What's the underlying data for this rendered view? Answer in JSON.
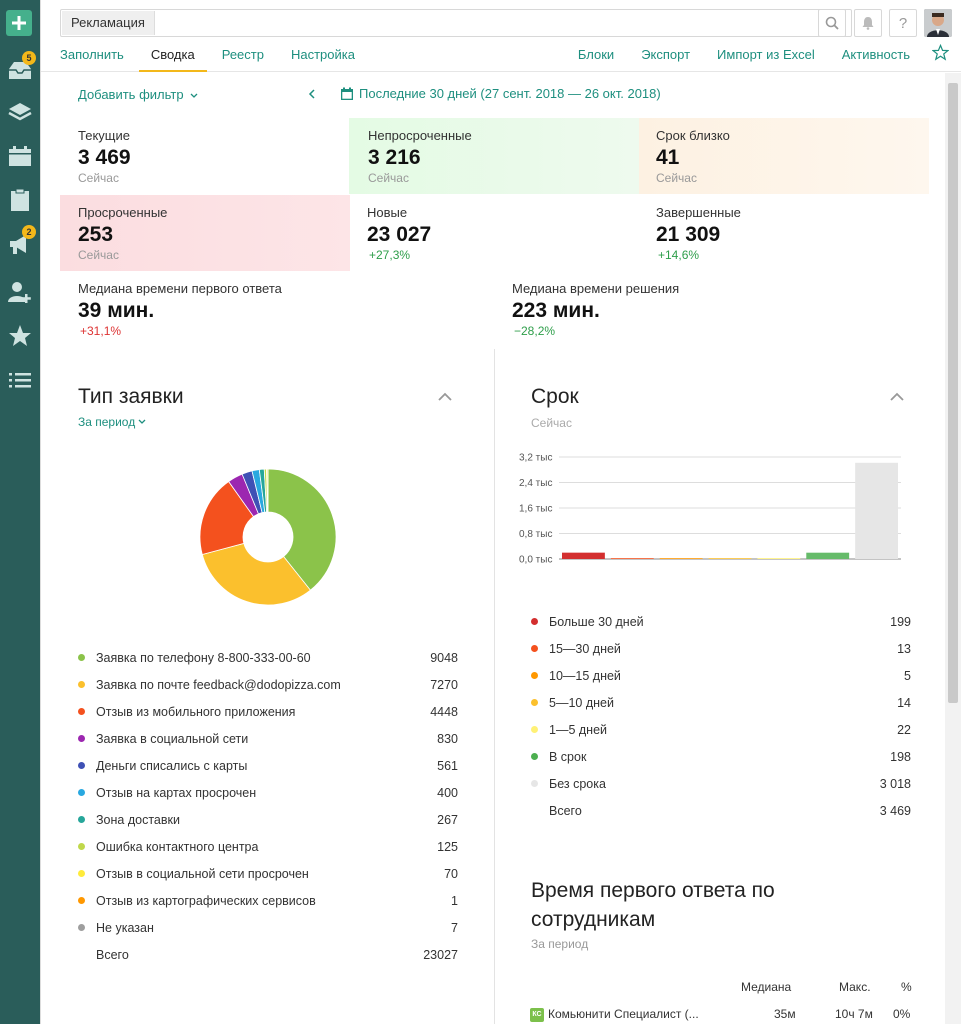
{
  "search": {
    "tag": "Рекламация"
  },
  "tabs": [
    {
      "label": "Заполнить"
    },
    {
      "label": "Сводка",
      "active": true
    },
    {
      "label": "Реестр"
    },
    {
      "label": "Настройка"
    }
  ],
  "right_tabs": [
    {
      "label": "Блоки"
    },
    {
      "label": "Экспорт"
    },
    {
      "label": "Импорт из Excel"
    },
    {
      "label": "Активность"
    }
  ],
  "sidebar": {
    "badges": {
      "inbox": "5",
      "megaphone": "2"
    }
  },
  "filter": {
    "add_filter": "Добавить фильтр",
    "period": "Последние 30 дней (27 сент. 2018 — 26 окт. 2018)"
  },
  "kpis": {
    "current": {
      "label": "Текущие",
      "value": "3 469",
      "sub": "Сейчас"
    },
    "not_overdue": {
      "label": "Непросроченные",
      "value": "3 216",
      "sub": "Сейчас"
    },
    "due_soon": {
      "label": "Срок близко",
      "value": "41",
      "sub": "Сейчас"
    },
    "overdue": {
      "label": "Просроченные",
      "value": "253",
      "sub": "Сейчас"
    },
    "new": {
      "label": "Новые",
      "value": "23 027",
      "sub": "+27,3%"
    },
    "completed": {
      "label": "Завершенные",
      "value": "21 309",
      "sub": "+14,6%"
    },
    "first_response": {
      "label": "Медиана времени первого ответа",
      "value": "39 мин.",
      "sub": "+31,1%"
    },
    "resolution": {
      "label": "Медиана времени решения",
      "value": "223 мин.",
      "sub": "−28,2%"
    }
  },
  "type_section": {
    "title": "Тип заявки",
    "subtitle": "За период",
    "items": [
      {
        "name": "Заявка по телефону 8-800-333-00-60",
        "value": "9048",
        "color": "#8bc34a"
      },
      {
        "name": "Заявка по почте feedback@dodopizza.com",
        "value": "7270",
        "color": "#fbc02d"
      },
      {
        "name": "Отзыв из мобильного приложения",
        "value": "4448",
        "color": "#f4511e"
      },
      {
        "name": "Заявка в социальной сети",
        "value": "830",
        "color": "#9c27b0"
      },
      {
        "name": "Деньги списались с карты",
        "value": "561",
        "color": "#3f51b5"
      },
      {
        "name": "Отзыв на картах просрочен",
        "value": "400",
        "color": "#29a8e0"
      },
      {
        "name": "Зона доставки",
        "value": "267",
        "color": "#26a69a"
      },
      {
        "name": "Ошибка контактного центра",
        "value": "125",
        "color": "#c0d84b"
      },
      {
        "name": "Отзыв в социальной сети просрочен",
        "value": "70",
        "color": "#ffeb3b"
      },
      {
        "name": "Отзыв из картографических сервисов",
        "value": "1",
        "color": "#ff9800"
      },
      {
        "name": "Не указан",
        "value": "7",
        "color": "#9e9e9e"
      }
    ],
    "total_label": "Всего",
    "total_value": "23027"
  },
  "deadline_section": {
    "title": "Срок",
    "subtitle": "Сейчас",
    "items": [
      {
        "name": "Больше 30 дней",
        "value": "199",
        "color": "#d32f2f"
      },
      {
        "name": "15—30 дней",
        "value": "13",
        "color": "#f4511e"
      },
      {
        "name": "10—15 дней",
        "value": "5",
        "color": "#ff9800"
      },
      {
        "name": "5—10 дней",
        "value": "14",
        "color": "#fbc02d"
      },
      {
        "name": "1—5 дней",
        "value": "22",
        "color": "#fff176"
      },
      {
        "name": "В срок",
        "value": "198",
        "color": "#4caf50"
      },
      {
        "name": "Без срока",
        "value": "3 018",
        "color": "#e6e6e6"
      }
    ],
    "total_label": "Всего",
    "total_value": "3 469"
  },
  "chart_data": {
    "type": "bar",
    "categories": [
      "Больше 30 дней",
      "15—30 дней",
      "10—15 дней",
      "5—10 дней",
      "1—5 дней",
      "В срок",
      "Без срока"
    ],
    "values": [
      199,
      13,
      5,
      14,
      22,
      198,
      3018
    ],
    "colors": [
      "#d32f2f",
      "#f4511e",
      "#ff9800",
      "#fbc02d",
      "#fff176",
      "#66bb6a",
      "#e6e6e6"
    ],
    "yticks": [
      "3,2 тыс",
      "2,4 тыс",
      "1,6 тыс",
      "0,8 тыс",
      "0,0 тыс"
    ],
    "ytick_values": [
      3200,
      2400,
      1600,
      800,
      0
    ],
    "ylim": [
      0,
      3200
    ],
    "grid": true
  },
  "response_section": {
    "title_line1": "Время первого ответа по",
    "title_line2": "сотрудникам",
    "subtitle": "За период",
    "headers": {
      "median": "Медиана",
      "max": "Макс.",
      "pct": "%"
    },
    "rows": [
      {
        "badge": "КС",
        "name": "Комьюнити Специалист (...",
        "median": "35м",
        "max": "10ч 7м",
        "pct": "0%"
      }
    ]
  }
}
